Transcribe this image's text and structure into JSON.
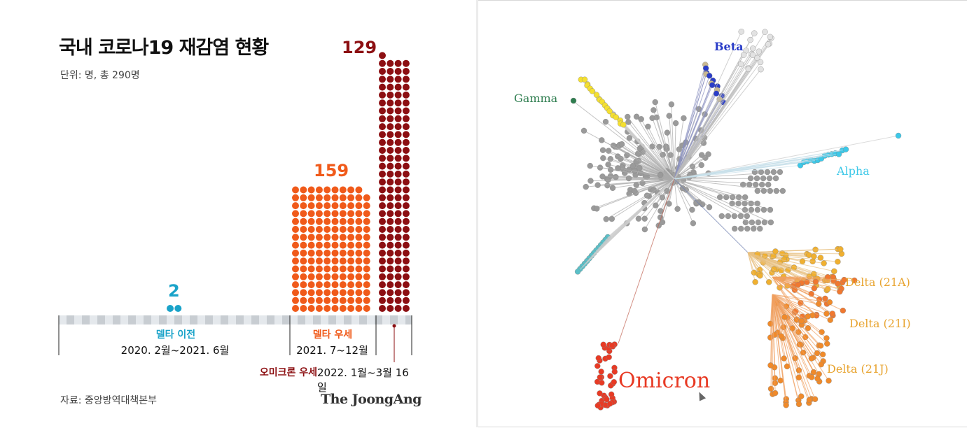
{
  "left": {
    "title": "국내 코로나19 재감염 현황",
    "subtitle": "단위: 명, 총 290명",
    "source": "자료: 중앙방역대책본부",
    "brand": "The JoongAng",
    "colors": {
      "pre_delta": "#1aa3c9",
      "delta": "#f05a1a",
      "omicron": "#8c0f12",
      "timeline": "#c8cdd2"
    },
    "periods": [
      {
        "name": "델타 이전",
        "range": "2020. 2월~2021. 6월",
        "count_label": "2"
      },
      {
        "name": "델타 우세",
        "range": "2021. 7~12월",
        "count_label": "159"
      },
      {
        "name": "오미크론 우세",
        "range": "2022. 1월~3월 16일",
        "count_label": "129"
      }
    ]
  },
  "right": {
    "labels": {
      "gamma": "Gamma",
      "beta": "Beta",
      "alpha": "Alpha",
      "delta_21a": "Delta (21A)",
      "delta_21i": "Delta (21I)",
      "delta_21j": "Delta (21J)",
      "omicron": "Omicron"
    },
    "colors": {
      "gamma": "#2e7d4f",
      "beta": "#2a3dc8",
      "alpha": "#3cc8e8",
      "delta_21a": "#f0b030",
      "delta_21i": "#f08a2a",
      "delta_21j": "#f08a2a",
      "omicron": "#e83a24",
      "other": "#9a9a9a"
    }
  },
  "chart_data": [
    {
      "type": "bar",
      "title": "국내 코로나19 재감염 현황",
      "subtitle": "단위: 명, 총 290명",
      "categories": [
        "델타 이전",
        "델타 우세",
        "오미크론 우세"
      ],
      "values": [
        2,
        159,
        129
      ],
      "xlabel": "",
      "ylabel": ""
    }
  ]
}
